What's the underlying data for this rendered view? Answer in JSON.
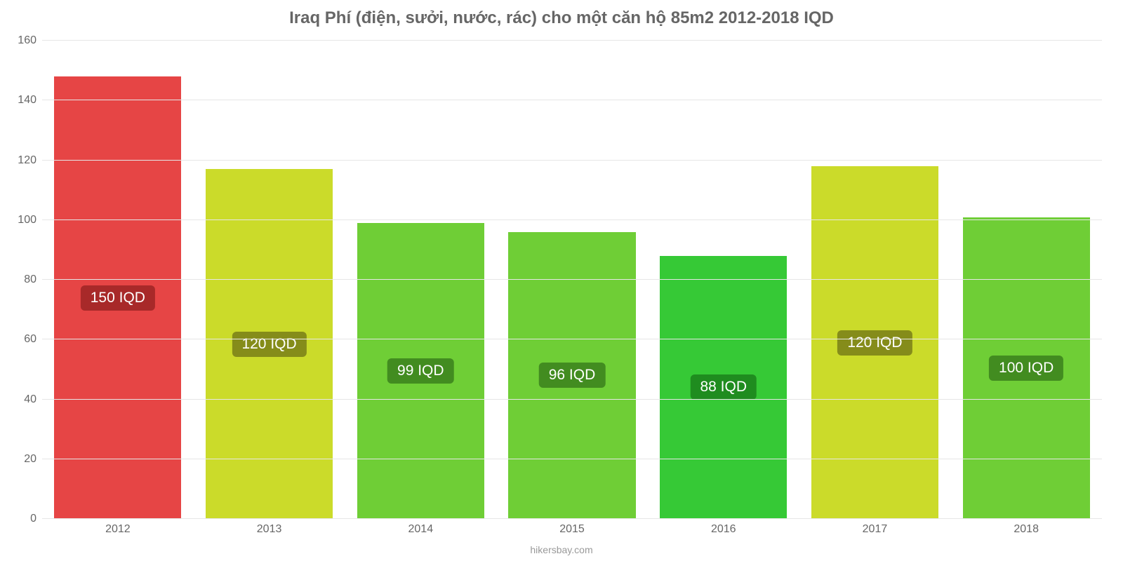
{
  "chart": {
    "type": "bar",
    "title": "Iraq Phí (điện, sưởi, nước, rác) cho một căn hộ 85m2 2012-2018 IQD",
    "title_fontsize": 24,
    "title_color": "#666666",
    "background_color": "#ffffff",
    "grid_color": "#e6e6e6",
    "axis_text_color": "#666666",
    "axis_fontsize": 16,
    "ylim": [
      0,
      160
    ],
    "ytick_step": 20,
    "yticks": [
      0,
      20,
      40,
      60,
      80,
      100,
      120,
      140,
      160
    ],
    "categories": [
      "2012",
      "2013",
      "2014",
      "2015",
      "2016",
      "2017",
      "2018"
    ],
    "values": [
      148,
      117,
      99,
      96,
      88,
      118,
      101
    ],
    "bar_labels": [
      "150 IQD",
      "120 IQD",
      "99 IQD",
      "96 IQD",
      "88 IQD",
      "120 IQD",
      "100 IQD"
    ],
    "bar_colors": [
      "#e64545",
      "#cbdb2a",
      "#6fce36",
      "#6fce36",
      "#36c936",
      "#cbdb2a",
      "#6fce36"
    ],
    "label_bg_colors": [
      "#a82929",
      "#858c1a",
      "#428c20",
      "#428c20",
      "#1f8c1f",
      "#858c1a",
      "#428c20"
    ],
    "label_fontsize": 21,
    "label_text_color": "#ffffff",
    "label_y_offset_pct": 50,
    "bar_width_pct": 84,
    "attribution": "hikersbay.com",
    "attribution_color": "#999999",
    "attribution_fontsize": 14
  }
}
